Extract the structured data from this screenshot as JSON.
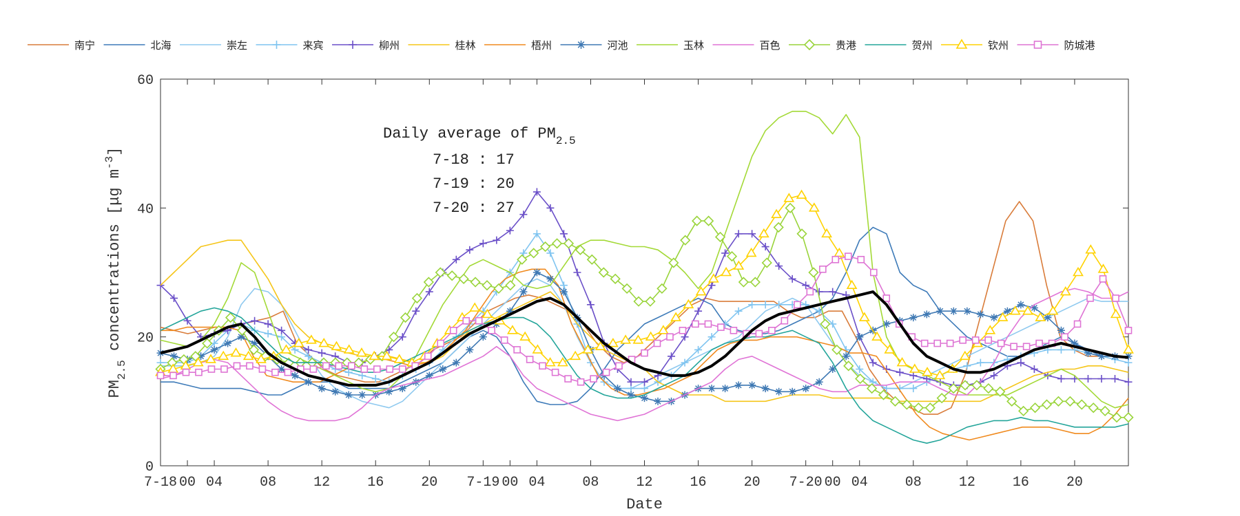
{
  "chart_data": {
    "type": "line",
    "ylabel_main": "PM",
    "ylabel_sub": "2.5",
    "ylabel_rest": " concentrations [μg m",
    "ylabel_sup": "-3",
    "ylabel_end": "]",
    "xlabel": "Date",
    "ylim": [
      0,
      60
    ],
    "xlim": [
      0,
      72
    ],
    "grid": false,
    "legend_position": "top",
    "x_ticks": [
      {
        "x": 0,
        "label": "7-18"
      },
      {
        "x": 2,
        "label": "00"
      },
      {
        "x": 4,
        "label": "04"
      },
      {
        "x": 8,
        "label": "08"
      },
      {
        "x": 12,
        "label": "12"
      },
      {
        "x": 16,
        "label": "16"
      },
      {
        "x": 20,
        "label": "20"
      },
      {
        "x": 24,
        "label": "7-19"
      },
      {
        "x": 26,
        "label": "00"
      },
      {
        "x": 28,
        "label": "04"
      },
      {
        "x": 32,
        "label": "08"
      },
      {
        "x": 36,
        "label": "12"
      },
      {
        "x": 40,
        "label": "16"
      },
      {
        "x": 44,
        "label": "20"
      },
      {
        "x": 48,
        "label": "7-20"
      },
      {
        "x": 50,
        "label": "00"
      },
      {
        "x": 52,
        "label": "04"
      },
      {
        "x": 56,
        "label": "08"
      },
      {
        "x": 60,
        "label": "12"
      },
      {
        "x": 64,
        "label": "16"
      },
      {
        "x": 68,
        "label": "20"
      }
    ],
    "y_ticks": [
      0,
      20,
      40,
      60
    ],
    "annotation": {
      "title_main": "Daily average of PM",
      "title_sub": "2.5",
      "lines": [
        "7-18 : 17",
        "7-19 : 20",
        "7-20 : 27"
      ]
    },
    "series": [
      {
        "name": "南宁",
        "color": "#d97c3a",
        "marker": "none",
        "values": [
          21.5,
          21,
          20.5,
          21,
          21.5,
          21.5,
          22,
          22.5,
          23,
          24,
          19,
          17,
          15,
          14,
          13.5,
          13,
          13,
          14,
          15,
          16,
          18,
          19,
          20,
          22,
          24,
          25,
          26,
          26.5,
          26,
          25,
          24,
          22,
          19,
          17,
          16,
          17,
          19,
          21,
          23,
          25,
          26,
          25.5,
          25.5,
          25.5,
          25.5,
          25.5,
          24,
          23,
          23,
          24,
          24,
          20,
          15,
          12,
          10,
          9,
          8,
          8,
          9,
          14,
          22,
          30,
          38,
          41,
          38,
          28,
          20,
          18,
          17,
          17,
          17,
          17
        ]
      },
      {
        "name": "北海",
        "color": "#3d7ab8",
        "marker": "none",
        "values": [
          13,
          13,
          12.5,
          12,
          12,
          12,
          12,
          11.5,
          11,
          11,
          12,
          13,
          13,
          13,
          12,
          12,
          12,
          12,
          13,
          14,
          15,
          16,
          18,
          20,
          21,
          20,
          17,
          13,
          10,
          9.5,
          9.5,
          10,
          12,
          15,
          18,
          20,
          22,
          23,
          24,
          25,
          26,
          25,
          22,
          21,
          20.5,
          20.5,
          21,
          22,
          23,
          24,
          26,
          30,
          35,
          37,
          36,
          30,
          28,
          27,
          24,
          22,
          20,
          19,
          18,
          17,
          17,
          18,
          19,
          20,
          19,
          18,
          17,
          17,
          17
        ]
      },
      {
        "name": "崇左",
        "color": "#8ec9ef",
        "marker": "none",
        "values": [
          15.5,
          15.5,
          15.5,
          16,
          17,
          20,
          25,
          27.5,
          27,
          25,
          21,
          17,
          14,
          12,
          11,
          10,
          9.5,
          9,
          10,
          12,
          14,
          16,
          18,
          20,
          22,
          24,
          26,
          28,
          29,
          28,
          25,
          20,
          16,
          13,
          12,
          12,
          13,
          14,
          15,
          16,
          17,
          18,
          19,
          20,
          22,
          24,
          25,
          26,
          25,
          22,
          19,
          16,
          14,
          13,
          12,
          12,
          13,
          14,
          15,
          16,
          17,
          18,
          19,
          20,
          21,
          22,
          23,
          24,
          25,
          26,
          25.5,
          25.5,
          25.5
        ]
      },
      {
        "name": "来宾",
        "color": "#7fc4f0",
        "marker": "plus",
        "values": [
          16,
          16,
          16,
          17,
          19,
          21,
          22,
          21,
          20.5,
          20,
          18,
          17,
          16,
          15,
          14.5,
          14,
          13.5,
          13,
          14,
          15,
          16,
          18,
          20,
          22,
          24,
          27,
          30,
          33,
          36,
          33,
          28,
          22,
          16,
          13,
          12,
          12,
          12,
          13,
          14,
          16,
          18,
          20,
          22,
          24,
          25,
          25,
          25,
          25,
          25,
          24,
          22,
          18,
          15,
          13,
          12,
          12,
          12,
          13,
          14,
          15,
          15.5,
          16,
          16,
          16.5,
          17,
          17.5,
          18,
          18,
          18,
          17.5,
          17,
          16.5,
          16
        ]
      },
      {
        "name": "柳州",
        "color": "#6a4fc8",
        "marker": "plus",
        "values": [
          28,
          26,
          22.5,
          20,
          20.5,
          21,
          22,
          22.5,
          22,
          21,
          19,
          18,
          17.5,
          17,
          16,
          16,
          17,
          18,
          20,
          24,
          27,
          30,
          32,
          33.5,
          34.5,
          35,
          36.5,
          39,
          42.5,
          40,
          36,
          30,
          25,
          19,
          15,
          13,
          13,
          14,
          17,
          20,
          24,
          28,
          33,
          36,
          36,
          34,
          31,
          29,
          28,
          27,
          27,
          26.5,
          20,
          16,
          15,
          14.5,
          14,
          13.5,
          13,
          12.5,
          12.5,
          13,
          14,
          15.5,
          16,
          15,
          14,
          13.5,
          13.5,
          13.5,
          13.5,
          13.5,
          13
        ]
      },
      {
        "name": "桂林",
        "color": "#f5c518",
        "marker": "none",
        "values": [
          28,
          30,
          32,
          34,
          34.5,
          35,
          35,
          32,
          29,
          25,
          22,
          20,
          19,
          18,
          17.5,
          17,
          17,
          17,
          16.5,
          16,
          16,
          17,
          19,
          21,
          22,
          23,
          24,
          25,
          26,
          27,
          25,
          22,
          20,
          18,
          17,
          16,
          15,
          13,
          12,
          11,
          11,
          11,
          10,
          10,
          10,
          10,
          10.5,
          11,
          11,
          11,
          10.5,
          10.5,
          10.5,
          10.5,
          10.5,
          10,
          10,
          10,
          10,
          10,
          10,
          10,
          11,
          12,
          13,
          14,
          14.5,
          15,
          15,
          15.5,
          15.5,
          15,
          14.5
        ]
      },
      {
        "name": "梧州",
        "color": "#f08a1e",
        "marker": "none",
        "values": [
          21,
          21,
          21.5,
          21.5,
          21.5,
          21.5,
          21,
          17,
          14,
          13.5,
          13,
          13,
          13,
          14,
          15,
          16,
          16.5,
          16.5,
          16,
          15.5,
          16,
          17,
          19,
          21,
          24,
          27,
          29,
          30,
          30.5,
          30.5,
          28,
          22,
          18,
          14,
          12,
          11,
          11,
          11.5,
          12,
          13,
          14,
          16,
          18,
          19,
          19.5,
          19.5,
          20,
          20,
          20,
          19.5,
          19,
          18.5,
          17.5,
          17.5,
          17,
          14,
          11,
          8,
          6,
          5,
          4.5,
          4,
          4.5,
          5,
          5.5,
          6,
          6,
          6,
          5.5,
          5,
          5,
          6,
          8,
          10.5
        ]
      },
      {
        "name": "河池",
        "color": "#3e78b3",
        "marker": "asterisk",
        "values": [
          17.5,
          17,
          16.5,
          17,
          18,
          19,
          20,
          19,
          17,
          15,
          14,
          13,
          12,
          11.5,
          11,
          11,
          11,
          11.5,
          12,
          13,
          14,
          15,
          16,
          18,
          20,
          22,
          24,
          27,
          30,
          29,
          27,
          23,
          18,
          14,
          12,
          11,
          10.5,
          10,
          10,
          11,
          12,
          12,
          12,
          12.5,
          12.5,
          12,
          11.5,
          11.5,
          12,
          13,
          15,
          17,
          20,
          21,
          22,
          22.5,
          23,
          23.5,
          24,
          24,
          24,
          23.5,
          23,
          24,
          25,
          24.5,
          23,
          21,
          19,
          17.5,
          17,
          17,
          17
        ]
      },
      {
        "name": "玉林",
        "color": "#a3d936",
        "marker": "none",
        "values": [
          19.5,
          19,
          18.5,
          19.5,
          22,
          26,
          31.5,
          30,
          24,
          18,
          17,
          16,
          15,
          14,
          13,
          12,
          11.5,
          12,
          14,
          17,
          21,
          25,
          28,
          31,
          32,
          31,
          30,
          28,
          27.5,
          28,
          31,
          34,
          35,
          35,
          34.5,
          34,
          34,
          33.5,
          32,
          30,
          27.5,
          30,
          36,
          42,
          48,
          52,
          54,
          55,
          55,
          54,
          51.5,
          54.5,
          51,
          30,
          20,
          16,
          15,
          14,
          13,
          12,
          11,
          11,
          11,
          11,
          12,
          13,
          14,
          15,
          14,
          12,
          10,
          9,
          9.5
        ]
      },
      {
        "name": "百色",
        "color": "#e074d6",
        "marker": "none",
        "values": [
          13.5,
          14,
          15,
          16,
          16.5,
          16,
          14,
          12,
          10,
          8.5,
          7.5,
          7,
          7,
          7,
          7.5,
          9,
          11,
          12,
          12.5,
          13,
          13.5,
          14,
          15,
          16,
          17,
          18.5,
          17,
          14,
          12,
          11,
          10,
          9,
          8,
          7.5,
          7,
          7.5,
          8,
          9,
          10,
          11,
          12,
          13,
          15,
          16.5,
          17,
          16,
          15,
          14,
          13,
          12,
          11.5,
          11.5,
          12.5,
          12.5,
          12.5,
          13,
          13,
          13,
          12,
          11,
          11,
          13,
          16,
          20,
          23,
          25,
          26,
          27,
          27.5,
          27,
          26,
          26,
          27
        ]
      },
      {
        "name": "贵港",
        "color": "#99d43a",
        "marker": "diamond",
        "values": [
          15,
          16,
          16.5,
          17,
          19,
          21,
          23,
          21,
          18,
          17,
          16.5,
          16,
          16,
          16,
          16,
          16,
          16,
          16,
          16.5,
          17,
          20,
          23,
          26,
          28.5,
          30,
          29.5,
          29,
          28.5,
          28,
          27.5,
          28,
          32,
          33,
          34,
          34.5,
          34.5,
          33.5,
          32,
          30,
          29,
          27.5,
          25.5,
          25.5,
          27.5,
          31.5,
          35,
          38,
          38,
          35.5,
          32.5,
          28.5,
          28.5,
          31.5,
          37,
          40,
          36,
          30,
          22,
          18,
          15.5,
          13.5,
          12,
          11,
          10,
          9.5,
          9,
          9,
          10.5,
          12,
          12.5,
          12.5,
          12,
          11.5,
          10,
          8.5,
          9,
          9.5,
          10,
          10,
          9.5,
          9,
          8.5,
          7.5,
          7.5
        ]
      },
      {
        "name": "贺州",
        "color": "#23a59a",
        "marker": "none",
        "values": [
          21,
          22,
          23,
          24,
          24.5,
          24,
          23,
          21,
          19,
          17,
          16,
          16,
          16,
          15.5,
          15,
          14.5,
          14.5,
          15,
          16,
          17,
          18,
          19,
          20,
          21,
          22,
          22.5,
          23,
          23,
          22,
          20,
          17,
          14,
          12,
          11,
          10.5,
          10.5,
          11,
          12,
          13,
          14,
          16,
          18,
          19,
          19.5,
          20,
          20,
          20.5,
          21,
          20,
          19,
          16,
          12,
          9,
          7,
          6,
          5,
          4,
          3.5,
          4,
          5,
          6,
          6.5,
          7,
          7,
          7.5,
          7,
          7,
          6.5,
          6,
          6,
          6,
          6,
          6.5
        ]
      },
      {
        "name": "钦州",
        "color": "#ffd200",
        "marker": "triangle",
        "values": [
          14.5,
          15,
          15.5,
          16,
          16.5,
          17,
          17.5,
          17,
          16.5,
          17,
          18,
          19,
          19.5,
          19,
          18.5,
          18,
          17.5,
          17,
          17,
          16.5,
          16,
          17,
          19,
          21,
          23,
          24.5,
          23.5,
          22.5,
          21,
          20,
          18,
          16,
          16,
          17,
          18,
          18.5,
          19,
          19.5,
          19.5,
          20,
          21,
          23,
          25,
          27,
          29,
          30,
          31,
          33,
          36,
          39,
          41.5,
          42,
          40,
          36,
          33,
          28,
          23,
          20,
          18,
          16,
          15,
          14.5,
          14,
          15,
          17,
          19,
          21,
          23,
          24,
          24,
          23,
          24,
          27,
          30,
          33.5,
          30.5,
          23.5,
          18
        ]
      },
      {
        "name": "防城港",
        "color": "#de74d4",
        "marker": "square",
        "values": [
          14,
          14,
          14.5,
          14.5,
          15,
          15,
          15.5,
          15.5,
          15,
          14.5,
          14.5,
          15,
          15,
          15.5,
          15.5,
          15.5,
          15,
          15,
          15,
          15,
          15.5,
          17,
          19,
          21,
          22.5,
          22.5,
          21,
          19.5,
          18,
          16.5,
          15.5,
          14.5,
          13.5,
          13,
          13.5,
          14.5,
          15.5,
          16.5,
          17.5,
          19,
          20,
          21,
          22,
          22,
          21.5,
          21,
          20.5,
          20.5,
          21,
          22.5,
          25,
          27,
          30.5,
          32,
          32.5,
          32,
          30,
          26,
          22,
          20,
          19,
          19,
          19,
          19.5,
          19.5,
          19.5,
          19,
          18.5,
          18.5,
          19,
          19,
          20,
          22,
          26,
          29,
          26,
          21
        ]
      },
      {
        "name": "",
        "color": "#000000",
        "marker": "none",
        "thick": true,
        "values": [
          17.5,
          18,
          18.5,
          19.5,
          20.5,
          21.5,
          22,
          20,
          17.5,
          16,
          15,
          14,
          13.5,
          13,
          12.5,
          12.5,
          12.5,
          13,
          14,
          15,
          16,
          17.5,
          19,
          20.5,
          21.5,
          22.5,
          23.5,
          24.5,
          25.5,
          26,
          25,
          23,
          21,
          19,
          17.5,
          16,
          15,
          14.5,
          14,
          14,
          14.5,
          15.5,
          17,
          19,
          21,
          22.5,
          23.5,
          24,
          24.5,
          25,
          25.5,
          26,
          26.5,
          27,
          25,
          22,
          19,
          17,
          16,
          15,
          14.5,
          14.5,
          15,
          16,
          17,
          18,
          18.5,
          19,
          18.5,
          18,
          17.5,
          17,
          16.8
        ]
      }
    ]
  }
}
